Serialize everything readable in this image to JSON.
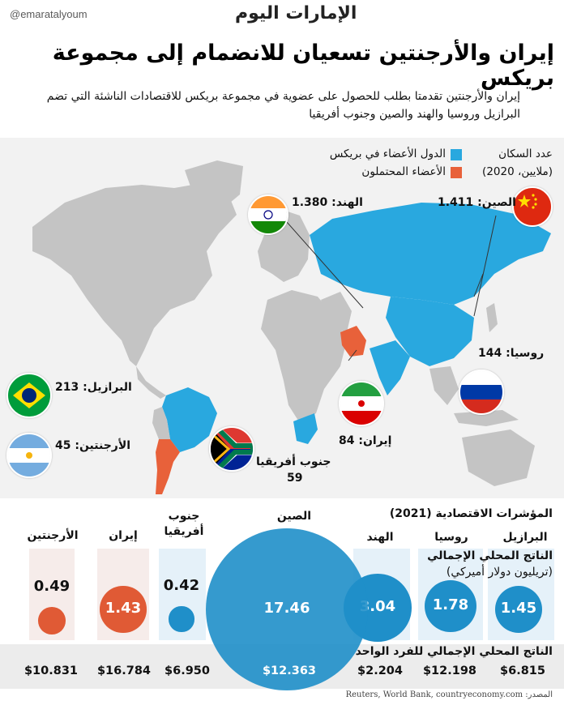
{
  "header": {
    "handle": "@emaratalyoum",
    "logo_text": "الإمارات اليوم",
    "title": "إيران والأرجنتين تسعيان للانضمام إلى مجموعة بريكس",
    "subtitle": "إيران والأرجنتين تقدمتا بطلب للحصول على عضوية في مجموعة بريكس للاقتصادات الناشئة التي تضم البرازيل وروسيا والهند والصين وجنوب أفريقيا"
  },
  "legend": {
    "population_title": "عدد السكان",
    "population_unit": "(ملايين، 2020)",
    "members_label": "الدول الأعضاء في بريكس",
    "potential_label": "الأعضاء المحتملون"
  },
  "colors": {
    "member": "#29a8df",
    "potential": "#e8613a",
    "land": "#c4c4c4",
    "econ_dark": "#1f8fc9",
    "econ_orange": "#e05a35"
  },
  "map_labels": {
    "china": "الصين: 1.411",
    "india": "الهند: 1.380",
    "russia": "روسيا: 144",
    "iran": "إيران: 84",
    "brazil": "البرازيل: 213",
    "argentina": "الأرجنتين: 45",
    "south_africa_name": "جنوب أفريقيا",
    "south_africa_value": "59"
  },
  "econ": {
    "section_title": "المؤشرات الاقتصادية (2021)",
    "gdp_label": "الناتج المحلي الإجمالي",
    "gdp_unit": "(تريليون دولار أميركي)",
    "per_capita_label": "الناتج المحلي الإجمالي للفرد الواحد",
    "countries": [
      {
        "name": "البرازيل",
        "gdp": "1.45",
        "per_capita": "$6.815",
        "type": "member"
      },
      {
        "name": "روسيا",
        "gdp": "1.78",
        "per_capita": "$12.198",
        "type": "member"
      },
      {
        "name": "الهند",
        "gdp": "3.04",
        "per_capita": "$2.204",
        "type": "member"
      },
      {
        "name": "الصين",
        "gdp": "17.46",
        "per_capita": "$12.363",
        "type": "member"
      },
      {
        "name": "جنوب أفريقيا",
        "gdp": "0.42",
        "per_capita": "$6.950",
        "type": "member"
      },
      {
        "name": "إيران",
        "gdp": "1.43",
        "per_capita": "$16.784",
        "type": "potential"
      },
      {
        "name": "الأرجنتين",
        "gdp": "0.49",
        "per_capita": "$10.831",
        "type": "potential"
      }
    ]
  },
  "source": {
    "label": "المصدر:",
    "text": "Reuters, World Bank, countryeconomy.com"
  }
}
